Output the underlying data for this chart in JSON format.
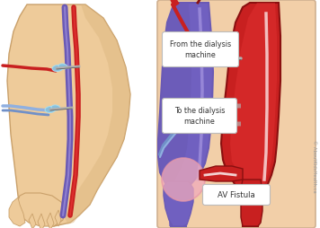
{
  "bg_color": "#ffffff",
  "panel_right_bg": "#f2cfa8",
  "arm_skin_light": "#eecb9a",
  "arm_skin_mid": "#ddb882",
  "arm_skin_dark": "#c9a06a",
  "vein_purple": "#6a5ab5",
  "vein_mid": "#7060c0",
  "vein_light": "#9080d0",
  "artery_red": "#c82020",
  "artery_light": "#e03030",
  "artery_dark": "#8a1010",
  "needle_tube_red": "#c82020",
  "needle_tube_blue": "#7090c8",
  "needle_tube_blue2": "#90b0e0",
  "needle_gray": "#b0b0b0",
  "needle_dark": "#606060",
  "needle_wing": "#88c0dd",
  "needle_wing2": "#aaddef",
  "fistula_pink": "#f0aabb",
  "text_color": "#333333",
  "label_bg": "#ffffff",
  "label_border": "#bbbbbb",
  "arrow_gray": "#b0b0b0",
  "copyright_color": "#999999",
  "title_from": "From the dialysis\nmachine",
  "title_to": "To the dialysis\nmachine",
  "title_fistula": "AV Fistula",
  "copyright": "© AboutKidsHealth.ca"
}
